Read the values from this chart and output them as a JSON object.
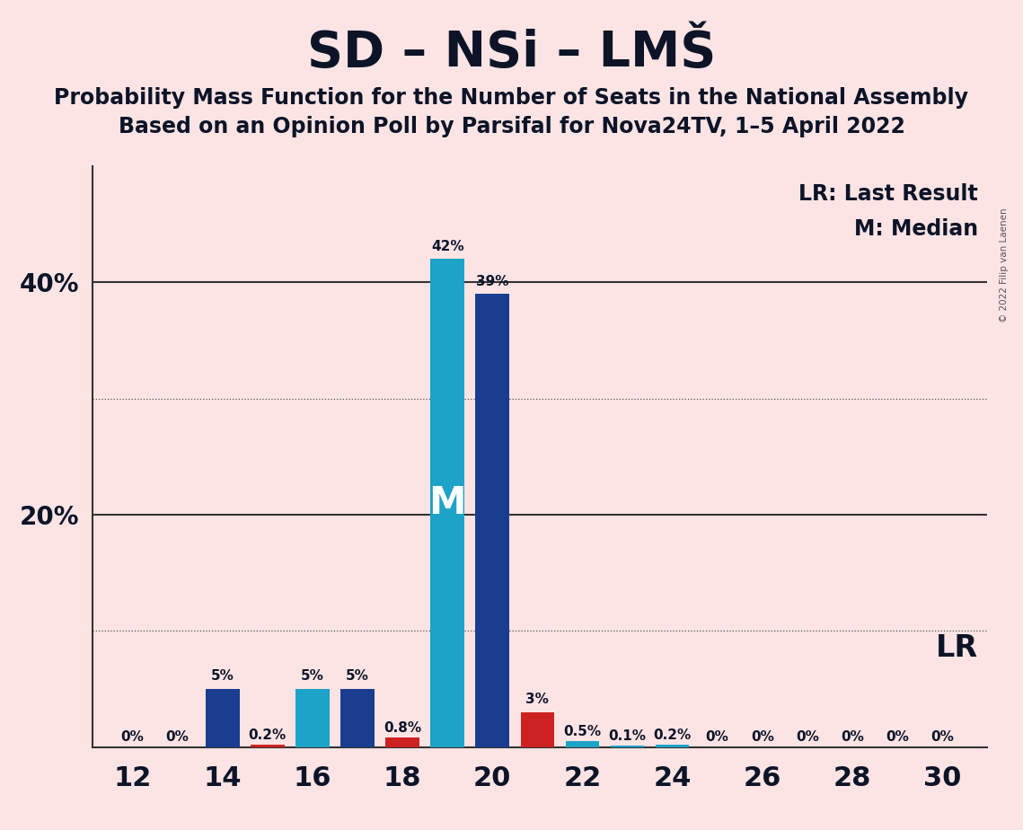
{
  "title": "SD – NSi – LMŠ",
  "subtitle1": "Probability Mass Function for the Number of Seats in the National Assembly",
  "subtitle2": "Based on an Opinion Poll by Parsifal for Nova24TV, 1–5 April 2022",
  "copyright": "© 2022 Filip van Laenen",
  "background_color": "#fce4e4",
  "seats": [
    12,
    13,
    14,
    15,
    16,
    17,
    18,
    19,
    20,
    21,
    22,
    23,
    24,
    25,
    26,
    27,
    28,
    29,
    30
  ],
  "values": [
    0.0,
    0.0,
    5.0,
    0.2,
    5.0,
    5.0,
    0.8,
    42.0,
    39.0,
    3.0,
    0.5,
    0.1,
    0.2,
    0.0,
    0.0,
    0.0,
    0.0,
    0.0,
    0.0
  ],
  "colors": [
    "#1a3d8f",
    "#1da2c8",
    "#1a3d8f",
    "#cc2222",
    "#1da2c8",
    "#1a3d8f",
    "#cc2222",
    "#1da2c8",
    "#1a3d8f",
    "#cc2222",
    "#1da2c8",
    "#1da2c8",
    "#1da2c8",
    "#1a3d8f",
    "#1a3d8f",
    "#1a3d8f",
    "#1a3d8f",
    "#1a3d8f",
    "#1a3d8f"
  ],
  "bar_labels": [
    "0%",
    "0%",
    "5%",
    "0.2%",
    "5%",
    "5%",
    "0.8%",
    "42%",
    "39%",
    "3%",
    "0.5%",
    "0.1%",
    "0.2%",
    "0%",
    "0%",
    "0%",
    "0%",
    "0%",
    "0%"
  ],
  "median_seat": 19,
  "legend_lr": "LR: Last Result",
  "legend_m": "M: Median",
  "lr_text": "LR",
  "ylim_max": 50,
  "ytick_vals": [
    10,
    20,
    30,
    40
  ],
  "ytick_labels": [
    "",
    "20%",
    "",
    "40%"
  ],
  "solid_hlines": [
    20,
    40
  ],
  "dotted_hlines": [
    10,
    30
  ],
  "xtick_seats": [
    12,
    14,
    16,
    18,
    20,
    22,
    24,
    26,
    28,
    30
  ],
  "bar_width": 0.75,
  "title_fontsize": 40,
  "subtitle_fontsize": 17,
  "ytick_fontsize": 20,
  "xtick_fontsize": 22,
  "label_fontsize": 11,
  "legend_fontsize": 17
}
